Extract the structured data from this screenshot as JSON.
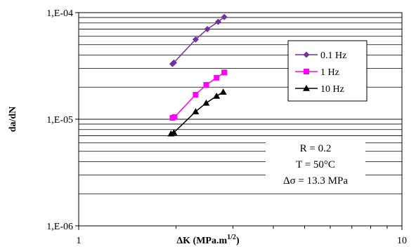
{
  "chart_data": {
    "type": "line",
    "x_scale": "log",
    "y_scale": "log",
    "xlim": [
      1,
      10
    ],
    "ylim": [
      1e-06,
      0.0001
    ],
    "xlabel": "ΔK (MPa.m",
    "xlabel_sup": "1/2",
    "xlabel_end": ")",
    "ylabel": "da/dN",
    "x_ticks": [
      {
        "value": 1,
        "label": "1"
      },
      {
        "value": 10,
        "label": "10"
      }
    ],
    "y_ticks": [
      {
        "value": 1e-06,
        "label": "1,E-06"
      },
      {
        "value": 1e-05,
        "label": "1,E-05"
      },
      {
        "value": 0.0001,
        "label": "1,E-04"
      }
    ],
    "grid": {
      "horizontal": true,
      "vertical": false
    },
    "legend": {
      "placement": "top-right"
    },
    "series": [
      {
        "name": "0.1 Hz",
        "color": "#7030A0",
        "marker": "diamond",
        "points": [
          [
            1.95,
            3.3e-05
          ],
          [
            1.97,
            3.4e-05
          ],
          [
            2.3,
            5.6e-05
          ],
          [
            2.5,
            7e-05
          ],
          [
            2.7,
            8.2e-05
          ],
          [
            2.82,
            9.1e-05
          ]
        ]
      },
      {
        "name": "1 Hz",
        "color": "#FF00FF",
        "marker": "square",
        "points": [
          [
            1.95,
            1.03e-05
          ],
          [
            1.98,
            1.05e-05
          ],
          [
            2.3,
            1.7e-05
          ],
          [
            2.48,
            2.1e-05
          ],
          [
            2.67,
            2.45e-05
          ],
          [
            2.82,
            2.75e-05
          ]
        ]
      },
      {
        "name": "10 Hz",
        "color": "#000000",
        "marker": "triangle",
        "points": [
          [
            1.93,
            7.3e-06
          ],
          [
            1.97,
            7.5e-06
          ],
          [
            2.3,
            1.18e-05
          ],
          [
            2.48,
            1.42e-05
          ],
          [
            2.67,
            1.65e-05
          ],
          [
            2.8,
            1.8e-05
          ]
        ]
      }
    ],
    "annotations": [
      "R = 0.2",
      "T = 50°C",
      "Δσ = 13.3 MPa"
    ]
  }
}
